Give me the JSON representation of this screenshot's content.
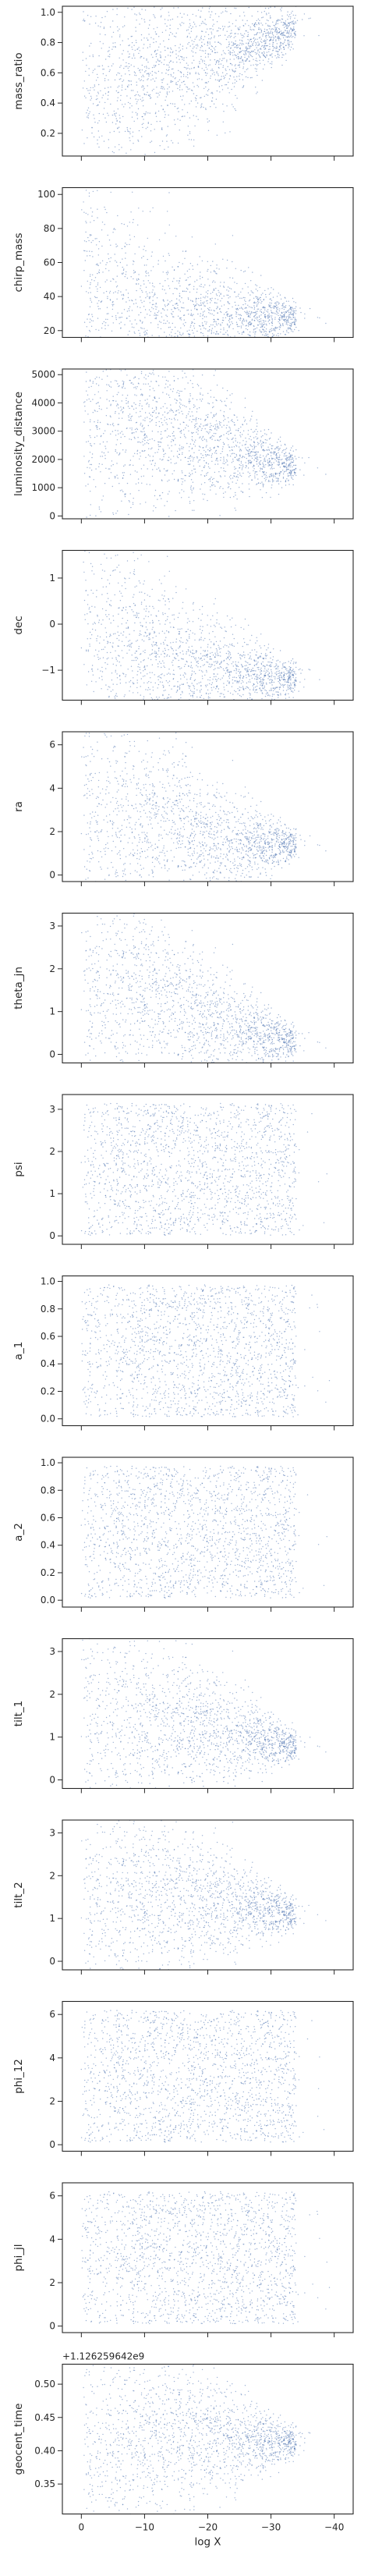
{
  "chart_data": {
    "type": "scatter",
    "layout": "14 vertically stacked panels sharing a reversed x axis",
    "point_color": "#4c72b0",
    "xlabel": "log X",
    "xlim": [
      3,
      -43
    ],
    "x_ticks": [
      0,
      -10,
      -20,
      -30,
      -40
    ],
    "x_tick_labels": [
      "0",
      "−10",
      "−20",
      "−30",
      "−40"
    ],
    "panels": [
      {
        "ylabel": "mass_ratio",
        "ylim": [
          0.05,
          1.04
        ],
        "y_ticks": [
          0.2,
          0.4,
          0.6,
          0.8,
          1.0
        ],
        "y_tick_labels": [
          "0.2",
          "0.4",
          "0.6",
          "0.8",
          "1.0"
        ],
        "pattern": "rising",
        "trend": [
          [
            0,
            0.45
          ],
          [
            -10,
            0.55
          ],
          [
            -20,
            0.68
          ],
          [
            -30,
            0.82
          ],
          [
            -34,
            0.9
          ]
        ]
      },
      {
        "ylabel": "chirp_mass",
        "ylim": [
          16,
          104
        ],
        "y_ticks": [
          20,
          40,
          60,
          80,
          100
        ],
        "y_tick_labels": [
          "20",
          "40",
          "60",
          "80",
          "100"
        ],
        "pattern": "decay_to_line",
        "trend": [
          [
            0,
            60
          ],
          [
            -5,
            40
          ],
          [
            -8,
            30
          ],
          [
            -12,
            26
          ],
          [
            -20,
            27
          ],
          [
            -30,
            28
          ],
          [
            -40,
            28
          ]
        ]
      },
      {
        "ylabel": "luminosity_distance",
        "ylim": [
          -100,
          5200
        ],
        "y_ticks": [
          0,
          1000,
          2000,
          3000,
          4000,
          5000
        ],
        "y_tick_labels": [
          "0",
          "1000",
          "2000",
          "3000",
          "4000",
          "5000"
        ],
        "pattern": "falling",
        "trend": [
          [
            0,
            3500
          ],
          [
            -10,
            3400
          ],
          [
            -20,
            2600
          ],
          [
            -30,
            1900
          ],
          [
            -38,
            1700
          ]
        ]
      },
      {
        "ylabel": "dec",
        "ylim": [
          -1.65,
          1.6
        ],
        "y_ticks": [
          -1,
          0,
          1
        ],
        "y_tick_labels": [
          "−1",
          "0",
          "1"
        ],
        "pattern": "converge_line",
        "trend": [
          [
            0,
            0.0
          ],
          [
            -10,
            -0.6
          ],
          [
            -15,
            -1.0
          ],
          [
            -25,
            -1.1
          ],
          [
            -40,
            -1.2
          ]
        ]
      },
      {
        "ylabel": "ra",
        "ylim": [
          -0.3,
          6.6
        ],
        "y_ticks": [
          0,
          2,
          4,
          6
        ],
        "y_tick_labels": [
          "0",
          "2",
          "4",
          "6"
        ],
        "pattern": "two_branches",
        "trend": [
          [
            0,
            3.0
          ],
          [
            -10,
            2.5
          ],
          [
            -15,
            2.7
          ],
          [
            -20,
            1.5
          ],
          [
            -30,
            1.45
          ],
          [
            -40,
            1.4
          ]
        ]
      },
      {
        "ylabel": "theta_jn",
        "ylim": [
          -0.2,
          3.3
        ],
        "y_ticks": [
          0,
          1,
          2,
          3
        ],
        "y_tick_labels": [
          "0",
          "1",
          "2",
          "3"
        ],
        "pattern": "two_branches",
        "trend": [
          [
            0,
            1.6
          ],
          [
            -10,
            1.5
          ],
          [
            -20,
            0.8
          ],
          [
            -30,
            0.4
          ],
          [
            -34,
            0.3
          ]
        ]
      },
      {
        "ylabel": "psi",
        "ylim": [
          -0.2,
          3.35
        ],
        "y_ticks": [
          0,
          1,
          2,
          3
        ],
        "y_tick_labels": [
          "0",
          "1",
          "2",
          "3"
        ],
        "pattern": "uniform",
        "trend": [
          [
            0,
            1.57
          ],
          [
            -34,
            1.57
          ]
        ]
      },
      {
        "ylabel": "a_1",
        "ylim": [
          -0.05,
          1.04
        ],
        "y_ticks": [
          0.0,
          0.2,
          0.4,
          0.6,
          0.8,
          1.0
        ],
        "y_tick_labels": [
          "0.0",
          "0.2",
          "0.4",
          "0.6",
          "0.8",
          "1.0"
        ],
        "pattern": "uniform",
        "trend": [
          [
            0,
            0.5
          ],
          [
            -34,
            0.5
          ]
        ]
      },
      {
        "ylabel": "a_2",
        "ylim": [
          -0.05,
          1.04
        ],
        "y_ticks": [
          0.0,
          0.2,
          0.4,
          0.6,
          0.8,
          1.0
        ],
        "y_tick_labels": [
          "0.0",
          "0.2",
          "0.4",
          "0.6",
          "0.8",
          "1.0"
        ],
        "pattern": "uniform",
        "trend": [
          [
            0,
            0.5
          ],
          [
            -34,
            0.5
          ]
        ]
      },
      {
        "ylabel": "tilt_1",
        "ylim": [
          -0.2,
          3.3
        ],
        "y_ticks": [
          0,
          1,
          2,
          3
        ],
        "y_tick_labels": [
          "0",
          "1",
          "2",
          "3"
        ],
        "pattern": "falling",
        "trend": [
          [
            0,
            1.57
          ],
          [
            -10,
            1.4
          ],
          [
            -20,
            1.2
          ],
          [
            -30,
            0.9
          ],
          [
            -34,
            0.8
          ]
        ]
      },
      {
        "ylabel": "tilt_2",
        "ylim": [
          -0.2,
          3.3
        ],
        "y_ticks": [
          0,
          1,
          2,
          3
        ],
        "y_tick_labels": [
          "0",
          "1",
          "2",
          "3"
        ],
        "pattern": "falling",
        "trend": [
          [
            0,
            1.57
          ],
          [
            -20,
            1.4
          ],
          [
            -30,
            1.2
          ],
          [
            -34,
            1.1
          ]
        ]
      },
      {
        "ylabel": "phi_12",
        "ylim": [
          -0.3,
          6.6
        ],
        "y_ticks": [
          0,
          2,
          4,
          6
        ],
        "y_tick_labels": [
          "0",
          "2",
          "4",
          "6"
        ],
        "pattern": "uniform",
        "trend": [
          [
            0,
            3.14
          ],
          [
            -34,
            3.14
          ]
        ]
      },
      {
        "ylabel": "phi_jl",
        "ylim": [
          -0.3,
          6.6
        ],
        "y_ticks": [
          0,
          2,
          4,
          6
        ],
        "y_tick_labels": [
          "0",
          "2",
          "4",
          "6"
        ],
        "pattern": "uniform",
        "trend": [
          [
            0,
            3.14
          ],
          [
            -30,
            3.5
          ],
          [
            -34,
            3.6
          ]
        ]
      },
      {
        "ylabel": "geocent_time",
        "ylim": [
          0.305,
          0.53
        ],
        "y_ticks": [
          0.35,
          0.4,
          0.45,
          0.5
        ],
        "y_tick_labels": [
          "0.35",
          "0.40",
          "0.45",
          "0.50"
        ],
        "pattern": "converge_line",
        "offset_text": "+1.126259642e9",
        "trend": [
          [
            0,
            0.4
          ],
          [
            -8,
            0.41
          ],
          [
            -15,
            0.43
          ],
          [
            -25,
            0.414
          ],
          [
            -40,
            0.414
          ]
        ]
      }
    ]
  }
}
